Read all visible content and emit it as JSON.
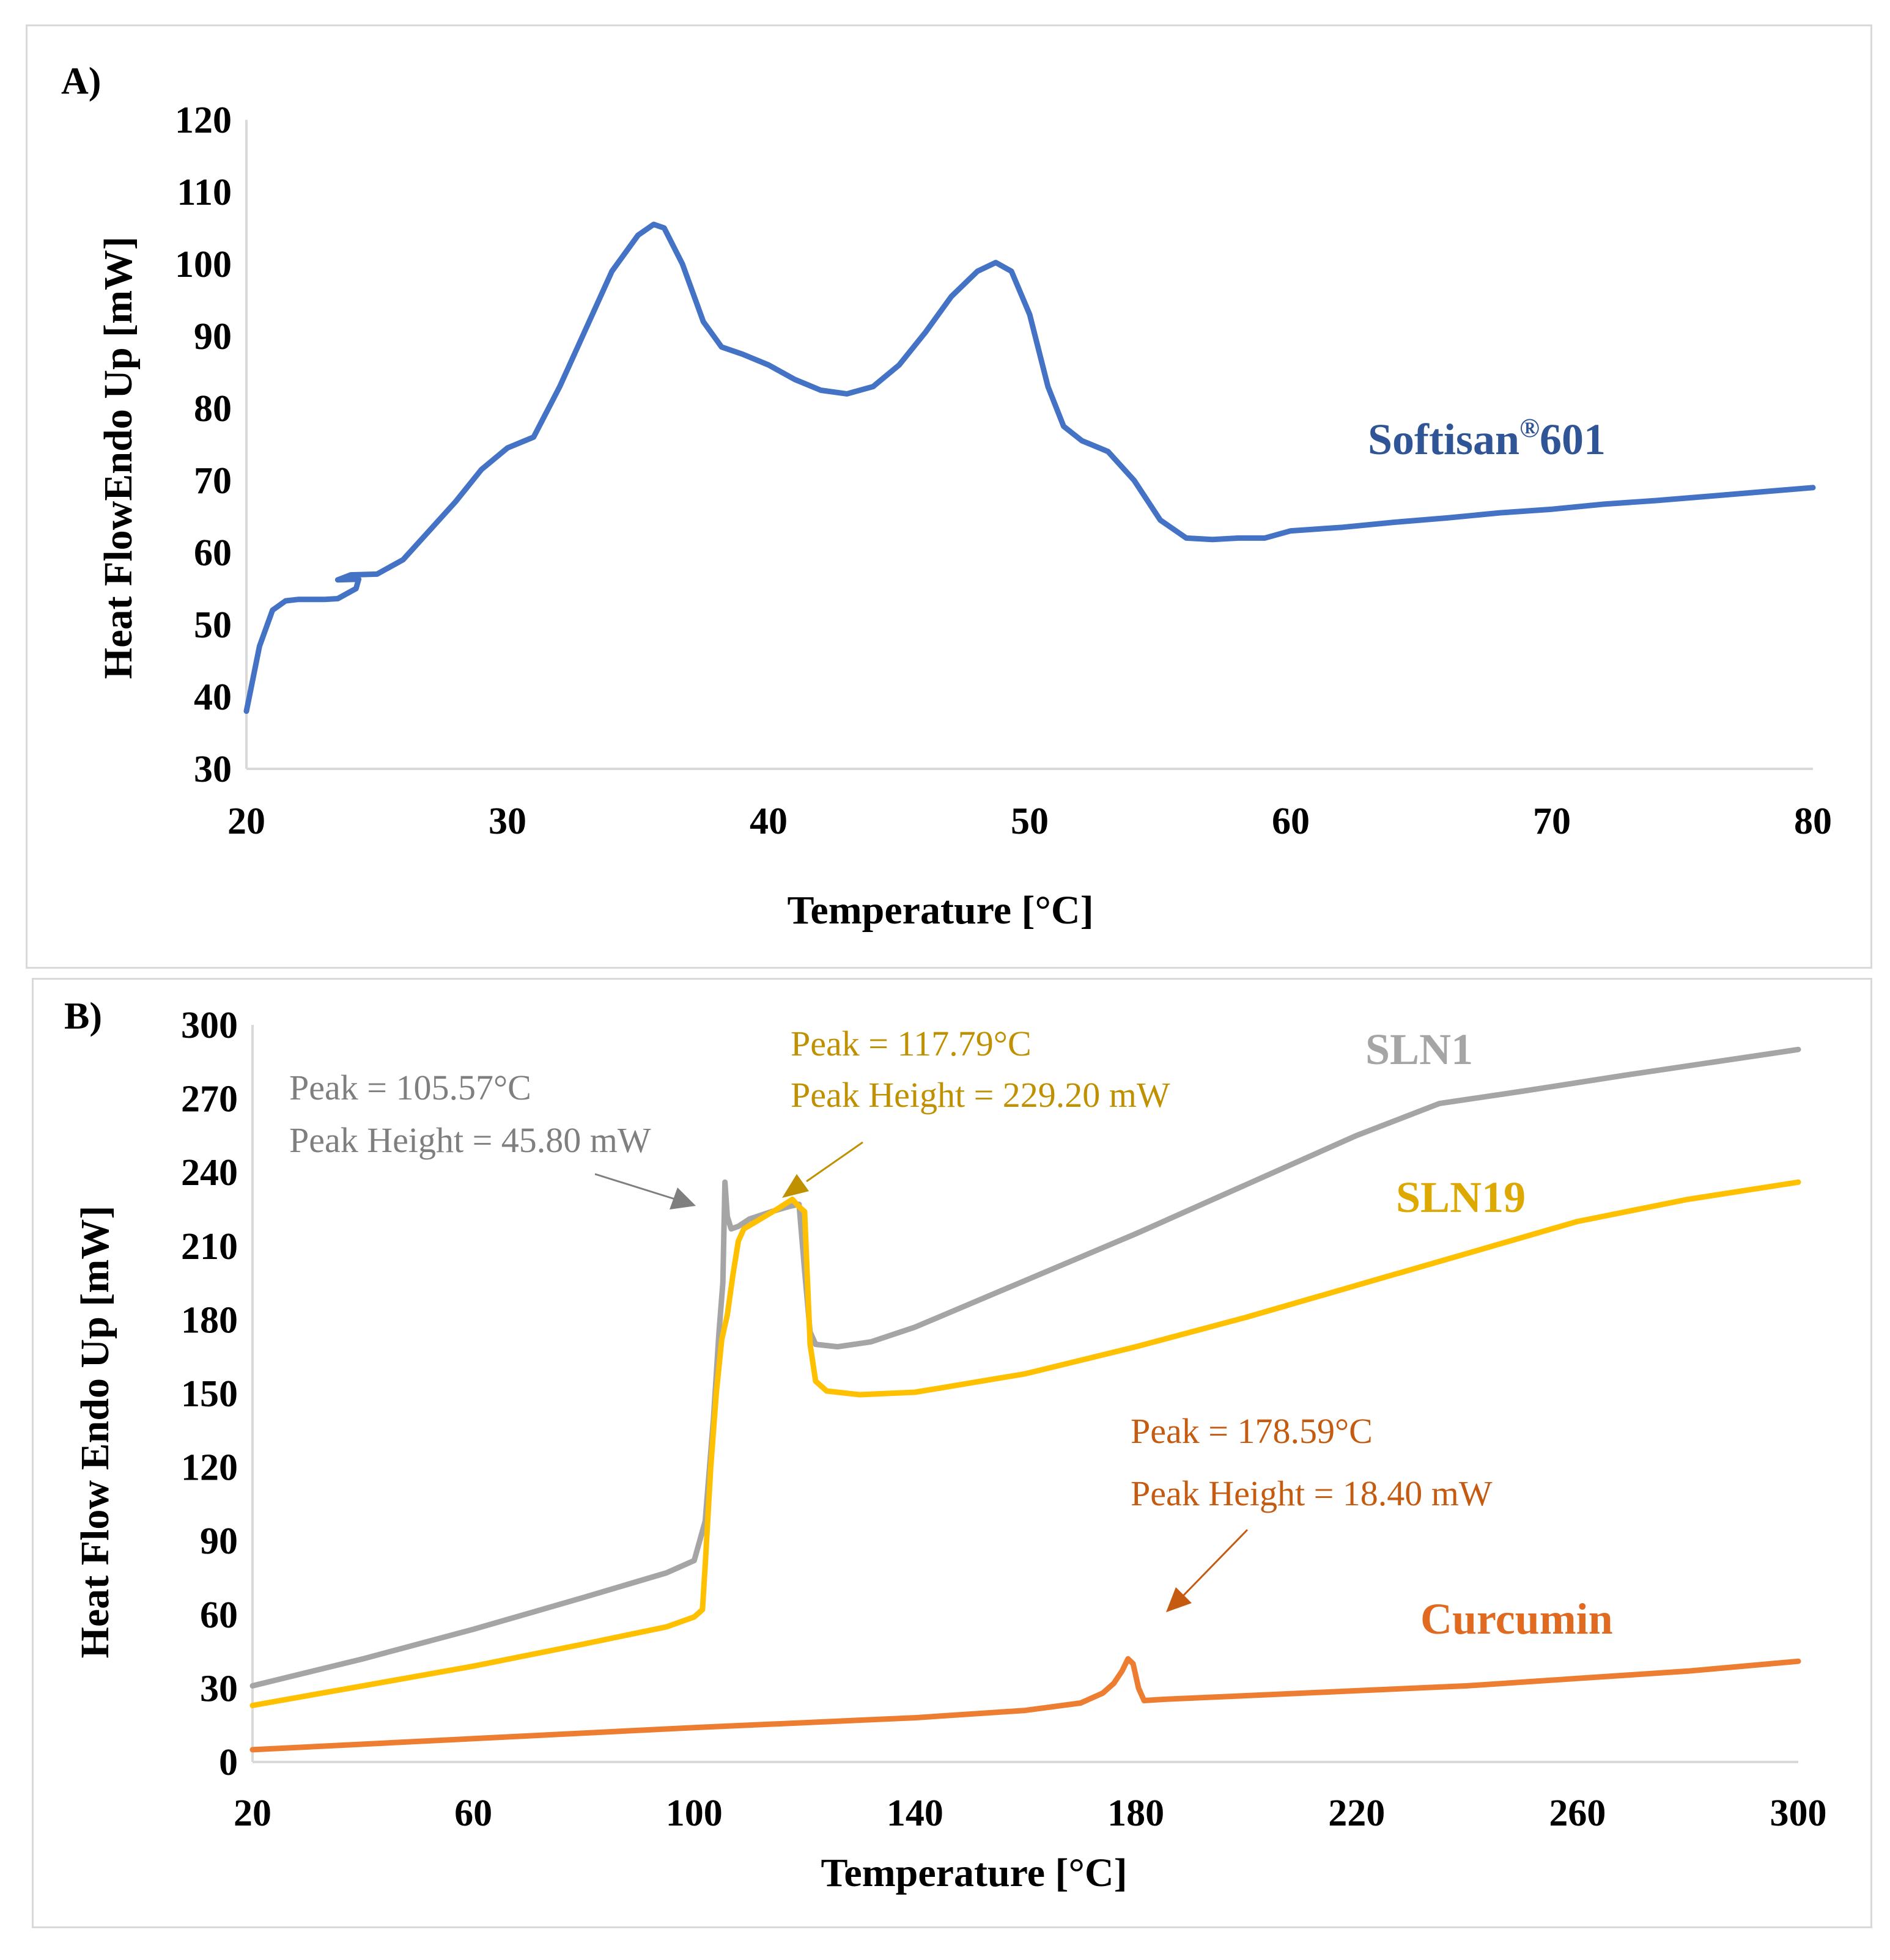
{
  "chart_data": [
    {
      "type": "line",
      "panel_label": "A)",
      "xlabel": "Temperature [°C]",
      "ylabel": "Heat FlowEndo Up [mW]",
      "xlim": [
        20,
        80
      ],
      "ylim": [
        30,
        120
      ],
      "x_ticks": [
        20,
        30,
        40,
        50,
        60,
        70,
        80
      ],
      "y_ticks": [
        30,
        40,
        50,
        60,
        70,
        80,
        90,
        100,
        110,
        120
      ],
      "grid": false,
      "series": [
        {
          "name": "Softisan®601",
          "label_main": "Softisan",
          "label_sup": "®",
          "label_tail": "601",
          "color": "#4472C4",
          "points": [
            [
              20,
              38
            ],
            [
              20.5,
              47
            ],
            [
              21,
              52
            ],
            [
              21.5,
              53.3
            ],
            [
              22,
              53.5
            ],
            [
              23,
              53.5
            ],
            [
              23.5,
              53.6
            ],
            [
              24.2,
              55
            ],
            [
              24.3,
              56.3
            ],
            [
              23.5,
              56.2
            ],
            [
              24,
              56.9
            ],
            [
              25,
              57
            ],
            [
              26,
              59
            ],
            [
              27,
              63
            ],
            [
              28,
              67
            ],
            [
              29,
              71.5
            ],
            [
              30,
              74.5
            ],
            [
              31,
              76
            ],
            [
              32,
              83
            ],
            [
              33,
              91
            ],
            [
              34,
              99
            ],
            [
              35,
              104
            ],
            [
              35.6,
              105.5
            ],
            [
              36,
              105
            ],
            [
              36.7,
              100
            ],
            [
              37.5,
              92
            ],
            [
              38.2,
              88.5
            ],
            [
              39,
              87.5
            ],
            [
              40,
              86
            ],
            [
              41,
              84
            ],
            [
              42,
              82.5
            ],
            [
              43,
              82
            ],
            [
              44,
              83
            ],
            [
              45,
              86
            ],
            [
              46,
              90.5
            ],
            [
              47,
              95.5
            ],
            [
              48,
              99
            ],
            [
              48.7,
              100.2
            ],
            [
              49.3,
              99
            ],
            [
              50,
              93
            ],
            [
              50.7,
              83
            ],
            [
              51.3,
              77.5
            ],
            [
              52,
              75.5
            ],
            [
              53,
              74
            ],
            [
              54,
              70
            ],
            [
              55,
              64.5
            ],
            [
              56,
              62
            ],
            [
              57,
              61.8
            ],
            [
              58,
              62
            ],
            [
              59,
              62
            ],
            [
              60,
              63
            ],
            [
              62,
              63.5
            ],
            [
              64,
              64.2
            ],
            [
              66,
              64.8
            ],
            [
              68,
              65.5
            ],
            [
              70,
              66
            ],
            [
              72,
              66.7
            ],
            [
              74,
              67.2
            ],
            [
              76,
              67.8
            ],
            [
              78,
              68.4
            ],
            [
              80,
              69
            ]
          ]
        }
      ]
    },
    {
      "type": "line",
      "panel_label": "B)",
      "xlabel": "Temperature [°C]",
      "ylabel": "Heat Flow Endo Up [mW]",
      "xlim": [
        20,
        300
      ],
      "ylim": [
        0,
        300
      ],
      "x_ticks": [
        20,
        60,
        100,
        140,
        180,
        220,
        260,
        300
      ],
      "y_ticks": [
        0,
        30,
        60,
        90,
        120,
        150,
        180,
        210,
        240,
        270,
        300
      ],
      "grid": false,
      "series": [
        {
          "name": "SLN1",
          "color": "#A5A5A5",
          "points": [
            [
              20,
              31
            ],
            [
              40,
              42
            ],
            [
              60,
              54
            ],
            [
              80,
              67
            ],
            [
              95,
              77
            ],
            [
              100,
              82
            ],
            [
              102,
              98
            ],
            [
              103.5,
              140
            ],
            [
              104.5,
              175
            ],
            [
              105.2,
              195
            ],
            [
              105.57,
              236
            ],
            [
              106,
              222
            ],
            [
              106.7,
              217
            ],
            [
              108,
              218
            ],
            [
              110,
              221
            ],
            [
              114,
              224
            ],
            [
              117,
              226
            ],
            [
              119,
              227
            ],
            [
              120,
              200
            ],
            [
              121,
              175
            ],
            [
              122,
              170
            ],
            [
              126,
              169
            ],
            [
              132,
              171
            ],
            [
              140,
              177
            ],
            [
              160,
              196
            ],
            [
              180,
              215
            ],
            [
              200,
              235
            ],
            [
              220,
              255
            ],
            [
              235,
              268
            ],
            [
              250,
              273
            ],
            [
              270,
              280
            ],
            [
              300,
              290
            ]
          ]
        },
        {
          "name": "SLN19",
          "color": "#FFC000",
          "points": [
            [
              20,
              23
            ],
            [
              40,
              31
            ],
            [
              60,
              39
            ],
            [
              80,
              48
            ],
            [
              95,
              55
            ],
            [
              100,
              59
            ],
            [
              101.5,
              62
            ],
            [
              102,
              80
            ],
            [
              103,
              120
            ],
            [
              104,
              150
            ],
            [
              105,
              172
            ],
            [
              106,
              182
            ],
            [
              107,
              198
            ],
            [
              108,
              212
            ],
            [
              109,
              217
            ],
            [
              112,
              221
            ],
            [
              115,
              225
            ],
            [
              117.79,
              229
            ],
            [
              119,
              226
            ],
            [
              120,
              224
            ],
            [
              121,
              170
            ],
            [
              122,
              155
            ],
            [
              124,
              151
            ],
            [
              130,
              149.5
            ],
            [
              140,
              150.5
            ],
            [
              160,
              158
            ],
            [
              180,
              169
            ],
            [
              200,
              181
            ],
            [
              220,
              194
            ],
            [
              240,
              207
            ],
            [
              260,
              220
            ],
            [
              280,
              229
            ],
            [
              300,
              236
            ]
          ]
        },
        {
          "name": "Curcumin",
          "color": "#ED7D31",
          "points": [
            [
              20,
              5
            ],
            [
              60,
              9.5
            ],
            [
              100,
              14
            ],
            [
              140,
              18
            ],
            [
              160,
              21
            ],
            [
              170,
              24
            ],
            [
              174,
              28
            ],
            [
              176,
              32
            ],
            [
              177.5,
              37
            ],
            [
              178.59,
              42
            ],
            [
              179.5,
              40
            ],
            [
              180.5,
              30
            ],
            [
              181.5,
              25
            ],
            [
              185,
              25.5
            ],
            [
              200,
              27
            ],
            [
              220,
              29
            ],
            [
              240,
              31
            ],
            [
              260,
              34
            ],
            [
              280,
              37
            ],
            [
              300,
              41
            ]
          ]
        }
      ],
      "annotations": [
        {
          "series": "SLN1",
          "line1": "Peak = 105.57°C",
          "line2": "Peak Height = 45.80 mW",
          "color": "#7F7F7F"
        },
        {
          "series": "SLN19",
          "line1": "Peak = 117.79°C",
          "line2": "Peak Height = 229.20 mW",
          "color": "#BF9000"
        },
        {
          "series": "Curcumin",
          "line1": "Peak = 178.59°C",
          "line2": "Peak Height = 18.40 mW",
          "color": "#C55A11"
        }
      ]
    }
  ]
}
